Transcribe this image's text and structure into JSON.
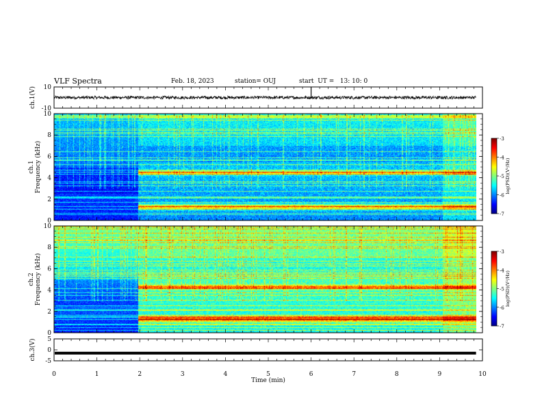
{
  "header": {
    "title": "VLF Spectra",
    "date": "Feb. 18, 2023",
    "station": "station= OUJ",
    "start": "start  UT =   13: 10: 0"
  },
  "chart_data": {
    "type": "heatmap",
    "title": "VLF Spectra",
    "xlabel": "Time  (min)",
    "xlim": [
      0,
      10
    ],
    "x_ticks": [
      "0",
      "1",
      "2",
      "3",
      "4",
      "5",
      "6",
      "7",
      "8",
      "9",
      "10"
    ],
    "panels": [
      {
        "id": "ch1v",
        "type": "line",
        "ylabel": "ch.1(V)",
        "ylim": [
          -10,
          10
        ],
        "y_ticks": [
          "10",
          "-10"
        ],
        "level": 0,
        "noise_amplitude": 1.0,
        "spike_at_min": 6.0
      },
      {
        "id": "ch1spec",
        "type": "heatmap",
        "ylabel": "ch.1\nFrequency (kHz)",
        "ylim": [
          0,
          10
        ],
        "y_ticks": [
          "0",
          "2",
          "4",
          "6",
          "8",
          "10"
        ],
        "regime_change_min": 1.95,
        "emission_bands_khz": [
          1.3,
          4.5
        ],
        "colorbar": {
          "label": "log(PSD)(V²/Hz)",
          "range": [
            -7,
            -3
          ],
          "ticks": [
            "-3",
            "-4",
            "-5",
            "-6",
            "-7"
          ]
        }
      },
      {
        "id": "ch2spec",
        "type": "heatmap",
        "ylabel": "ch.2\nFrequency (kHz)",
        "ylim": [
          0,
          10
        ],
        "y_ticks": [
          "0",
          "2",
          "4",
          "6",
          "8",
          "10"
        ],
        "regime_change_min": 1.95,
        "emission_bands_khz": [
          1.3,
          4.3
        ],
        "colorbar": {
          "label": "log(PSD)(V²/Hz)",
          "range": [
            -7,
            -3
          ],
          "ticks": [
            "-3",
            "-4",
            "-5",
            "-6",
            "-7"
          ]
        }
      },
      {
        "id": "ch3v",
        "type": "line",
        "ylabel": "ch.3(V)",
        "ylim": [
          -5,
          5
        ],
        "y_ticks": [
          "5",
          "0",
          "-5"
        ],
        "level": -1.5
      }
    ],
    "data_end_min": 9.85,
    "colors": {
      "trace": "#000000",
      "background": "#ffffff"
    }
  }
}
